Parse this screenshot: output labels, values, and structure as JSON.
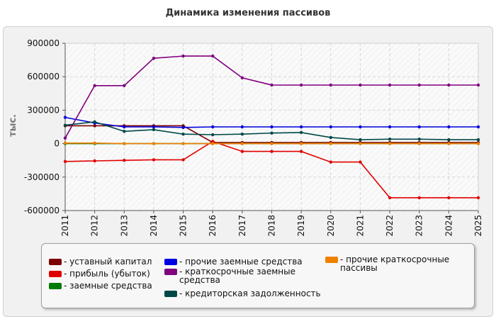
{
  "title": "Динамика изменения пассивов",
  "chart_data": {
    "type": "line",
    "ylabel": "тыс.",
    "xlabel": "",
    "x": [
      "2011",
      "2012",
      "2013",
      "2014",
      "2015",
      "2016",
      "2017",
      "2018",
      "2019",
      "2020",
      "2021",
      "2022",
      "2023",
      "2024",
      "2025"
    ],
    "ylim": [
      -600000,
      900000
    ],
    "yticks": [
      900000,
      600000,
      300000,
      0,
      -300000,
      -600000
    ],
    "ytick_labels": [
      "900000",
      "600000",
      "300000",
      "0",
      "-300000",
      "-600000"
    ],
    "grid": true,
    "legend_position": "bottom",
    "series": [
      {
        "name": "- уставный капитал",
        "color": "#7b0000",
        "values": [
          160000,
          160000,
          160000,
          160000,
          160000,
          10000,
          10000,
          10000,
          10000,
          10000,
          10000,
          10000,
          10000,
          10000,
          10000
        ]
      },
      {
        "name": "- прибыль (убыток)",
        "color": "#e00000",
        "values": [
          -160000,
          -155000,
          -150000,
          -145000,
          -145000,
          20000,
          -70000,
          -70000,
          -70000,
          -165000,
          -165000,
          -485000,
          -485000,
          -485000,
          -485000
        ]
      },
      {
        "name": "- заемные средства",
        "color": "#007a00",
        "values": [
          0,
          0,
          0,
          0,
          0,
          0,
          0,
          0,
          0,
          0,
          0,
          0,
          0,
          0,
          0
        ]
      },
      {
        "name": "- прочие заемные средства",
        "color": "#0000e0",
        "values": [
          235000,
          185000,
          150000,
          150000,
          145000,
          150000,
          150000,
          150000,
          150000,
          150000,
          150000,
          150000,
          150000,
          150000,
          150000
        ]
      },
      {
        "name": "- краткосрочные заемные средства",
        "color": "#800080",
        "values": [
          50000,
          520000,
          520000,
          765000,
          785000,
          785000,
          590000,
          525000,
          525000,
          525000,
          525000,
          525000,
          525000,
          525000,
          525000
        ]
      },
      {
        "name": "- кредиторская задолженность",
        "color": "#004848",
        "values": [
          165000,
          195000,
          110000,
          125000,
          85000,
          80000,
          85000,
          95000,
          100000,
          55000,
          35000,
          40000,
          40000,
          35000,
          35000
        ]
      },
      {
        "name": "- прочие краткосрочные пассивы",
        "color": "#f08000",
        "values": [
          5000,
          5000,
          0,
          0,
          0,
          0,
          0,
          0,
          0,
          0,
          0,
          0,
          0,
          0,
          0
        ]
      }
    ]
  }
}
